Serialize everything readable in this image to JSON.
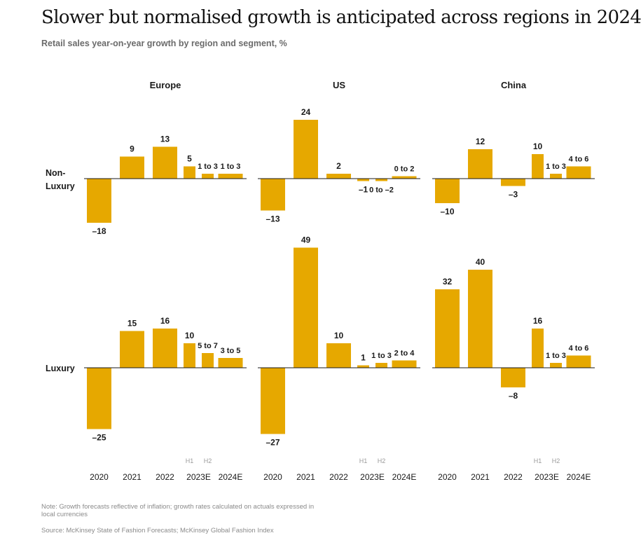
{
  "title": "Slower but normalised growth is anticipated across regions in 2024",
  "subtitle": "Retail sales year-on-year growth by region and segment, %",
  "note": "Note: Growth forecasts reflective of inflation; growth rates calculated on actuals expressed in local currencies",
  "source": "Source: McKinsey State of Fashion Forecasts; McKinsey Global Fashion Index",
  "colors": {
    "bar": "#E6A800",
    "axis": "#1a1a1a"
  },
  "chart_data": {
    "type": "bar",
    "regions": [
      "Europe",
      "US",
      "China"
    ],
    "rows": [
      "Non-Luxury",
      "Luxury"
    ],
    "categories": [
      "2020",
      "2021",
      "2022",
      "2023E H1",
      "2023E H2",
      "2024E"
    ],
    "x_tick_labels": [
      "2020",
      "2021",
      "2022",
      "2023E",
      "2024E"
    ],
    "sub_tick_labels": [
      "H1",
      "H2"
    ],
    "panels": [
      {
        "region": "Europe",
        "row": "Non-Luxury",
        "values": [
          -18,
          9,
          13,
          5,
          2,
          2
        ],
        "labels": [
          "–18",
          "9",
          "13",
          "5",
          "1 to 3",
          "1 to 3"
        ]
      },
      {
        "region": "US",
        "row": "Non-Luxury",
        "values": [
          -13,
          24,
          2,
          -1,
          -1,
          1
        ],
        "labels": [
          "–13",
          "24",
          "2",
          "–1",
          "0 to –2",
          "0 to 2"
        ]
      },
      {
        "region": "China",
        "row": "Non-Luxury",
        "values": [
          -10,
          12,
          -3,
          10,
          2,
          5
        ],
        "labels": [
          "–10",
          "12",
          "–3",
          "10",
          "1 to 3",
          "4 to 6"
        ]
      },
      {
        "region": "Europe",
        "row": "Luxury",
        "values": [
          -25,
          15,
          16,
          10,
          6,
          4
        ],
        "labels": [
          "–25",
          "15",
          "16",
          "10",
          "5 to 7",
          "3 to 5"
        ]
      },
      {
        "region": "US",
        "row": "Luxury",
        "values": [
          -27,
          49,
          10,
          1,
          2,
          3
        ],
        "labels": [
          "–27",
          "49",
          "10",
          "1",
          "1 to 3",
          "2 to 4"
        ]
      },
      {
        "region": "China",
        "row": "Luxury",
        "values": [
          32,
          40,
          -8,
          16,
          2,
          5
        ],
        "labels": [
          "32",
          "40",
          "–8",
          "16",
          "1 to 3",
          "4 to 6"
        ]
      }
    ]
  }
}
